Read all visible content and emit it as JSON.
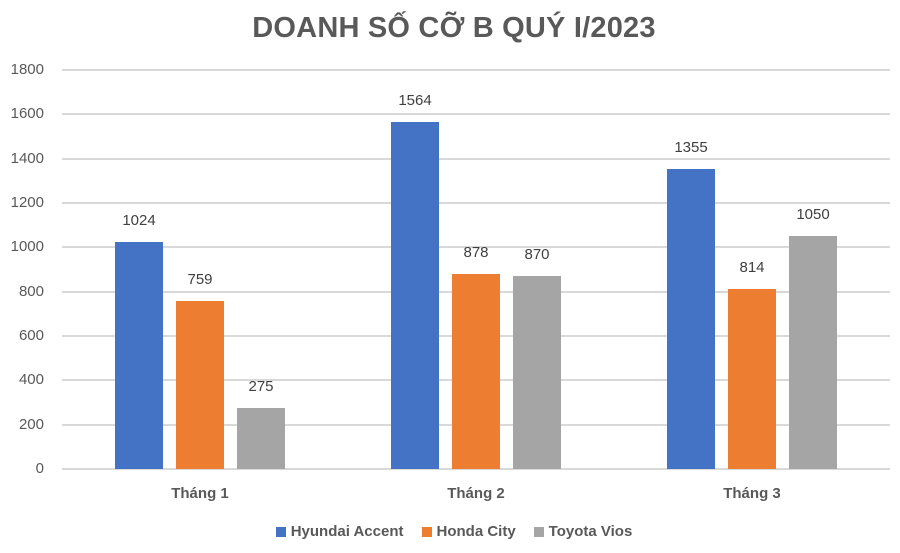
{
  "chart_data": {
    "type": "bar",
    "title": "DOANH SỐ CỠ B QUÝ I/2023",
    "xlabel": "",
    "ylabel": "",
    "categories": [
      "Tháng 1",
      "Tháng 2",
      "Tháng 3"
    ],
    "series": [
      {
        "name": "Hyundai Accent",
        "color": "#4472c4",
        "values": [
          1024,
          1564,
          1355
        ]
      },
      {
        "name": "Honda City",
        "color": "#ed7d31",
        "values": [
          759,
          878,
          814
        ]
      },
      {
        "name": "Toyota Vios",
        "color": "#a5a5a5",
        "values": [
          275,
          870,
          1050
        ]
      }
    ],
    "ylim": [
      0,
      1800
    ],
    "yticks": [
      0,
      200,
      400,
      600,
      800,
      1000,
      1200,
      1400,
      1600,
      1800
    ],
    "grid": true,
    "data_labels": true,
    "legend_position": "bottom"
  }
}
